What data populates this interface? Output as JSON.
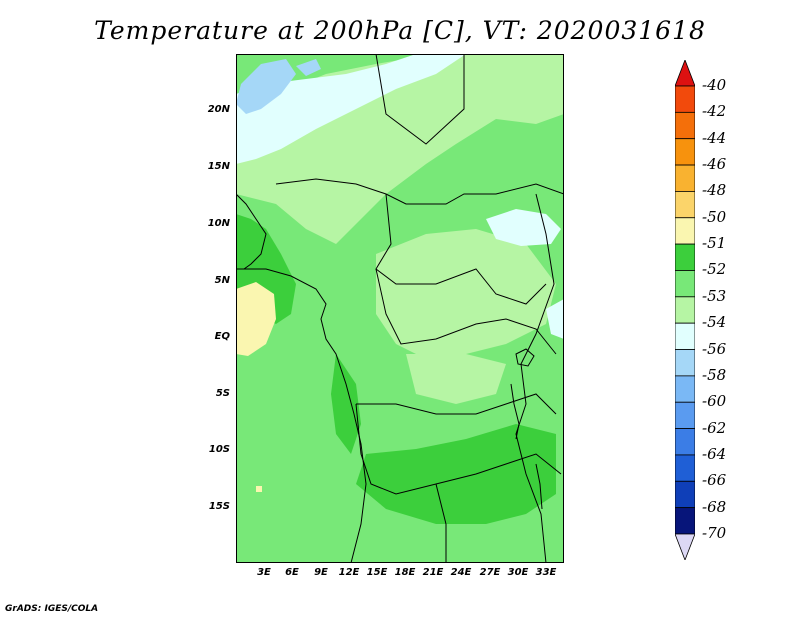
{
  "title": "Temperature at 200hPa [C], VT: 2020031618",
  "credit": "GrADS: IGES/COLA",
  "lat_labels": [
    "20N",
    "15N",
    "10N",
    "5N",
    "EQ",
    "5S",
    "10S",
    "15S"
  ],
  "lon_labels": [
    "3E",
    "6E",
    "9E",
    "12E",
    "15E",
    "18E",
    "21E",
    "24E",
    "27E",
    "30E",
    "33E"
  ],
  "colorbar": {
    "labels": [
      "-40",
      "-42",
      "-44",
      "-46",
      "-48",
      "-50",
      "-51",
      "-52",
      "-53",
      "-54",
      "-56",
      "-58",
      "-60",
      "-62",
      "-64",
      "-66",
      "-68",
      "-70"
    ],
    "colors": [
      "#ee2211",
      "#f24a0c",
      "#f46f0a",
      "#f7920d",
      "#f9b230",
      "#fbd46a",
      "#faf6b0",
      "#3ccf3c",
      "#78e878",
      "#b6f5a4",
      "#e1fffe",
      "#a5d7f7",
      "#7ab8f5",
      "#5a9bf0",
      "#3b7de6",
      "#1f5fd6",
      "#0f3fb8",
      "#07157a"
    ],
    "top_arrow_color": "#dd1111",
    "bottom_arrow_color": "#dcd8f5"
  },
  "palette": {
    "level_m52": "#3ccf3c",
    "level_m53": "#78e878",
    "level_m54": "#b6f5a4",
    "level_m56": "#e1fffe",
    "level_m58": "#a5d7f7",
    "level_m51": "#faf6b0"
  }
}
